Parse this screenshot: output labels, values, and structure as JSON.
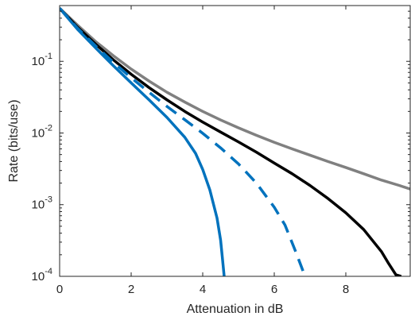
{
  "chart_data": {
    "type": "line",
    "title": "",
    "xlabel": "Attenuation in dB",
    "ylabel": "Rate (bits/use)",
    "xlim": [
      0,
      9.8
    ],
    "ylim": [
      0.0001,
      0.6
    ],
    "yscale": "log",
    "grid": false,
    "legend": "none",
    "x_ticks": [
      0,
      2,
      4,
      6,
      8
    ],
    "x_tick_labels": [
      "0",
      "2",
      "4",
      "6",
      "8"
    ],
    "y_ticks": [
      0.0001,
      0.001,
      0.01,
      0.1
    ],
    "y_tick_labels": [
      {
        "base": "10",
        "exp": "-4"
      },
      {
        "base": "10",
        "exp": "-3"
      },
      {
        "base": "10",
        "exp": "-2"
      },
      {
        "base": "10",
        "exp": "-1"
      }
    ],
    "series": [
      {
        "color": "#808080",
        "style": "solid",
        "x": [
          0,
          0.5,
          1,
          1.5,
          2,
          2.5,
          3,
          3.5,
          4,
          4.5,
          5,
          5.5,
          6,
          6.5,
          7,
          7.5,
          8,
          8.5,
          9,
          9.5,
          9.8
        ],
        "y": [
          0.55,
          0.32,
          0.19,
          0.12,
          0.078,
          0.053,
          0.037,
          0.027,
          0.02,
          0.0152,
          0.0118,
          0.0093,
          0.0074,
          0.006,
          0.0049,
          0.004,
          0.0033,
          0.0027,
          0.0022,
          0.00185,
          0.00165
        ]
      },
      {
        "color": "#000000",
        "style": "solid",
        "x": [
          0,
          0.5,
          1,
          1.5,
          2,
          2.5,
          3,
          3.5,
          4,
          4.5,
          5,
          5.5,
          6,
          6.5,
          7,
          7.5,
          8,
          8.5,
          9,
          9.2,
          9.4,
          9.55
        ],
        "y": [
          0.55,
          0.3,
          0.175,
          0.105,
          0.066,
          0.043,
          0.029,
          0.02,
          0.0142,
          0.0103,
          0.0075,
          0.0054,
          0.0038,
          0.0027,
          0.00185,
          0.00122,
          0.00077,
          0.00045,
          0.00022,
          0.00015,
          0.000105,
          0.0001
        ]
      },
      {
        "color": "#0072BD",
        "style": "dashed",
        "x": [
          0,
          0.5,
          1,
          1.5,
          2,
          2.5,
          3,
          3.5,
          4,
          4.5,
          5,
          5.5,
          6,
          6.3,
          6.6,
          6.8,
          6.85
        ],
        "y": [
          0.55,
          0.29,
          0.165,
          0.097,
          0.059,
          0.037,
          0.0235,
          0.0153,
          0.0099,
          0.0062,
          0.0037,
          0.002,
          0.00092,
          0.00052,
          0.00022,
          0.00012,
          0.0001
        ]
      },
      {
        "color": "#0072BD",
        "style": "solid",
        "x": [
          0,
          0.5,
          1,
          1.5,
          2,
          2.5,
          3,
          3.5,
          3.8,
          4,
          4.2,
          4.4,
          4.5,
          4.55,
          4.6
        ],
        "y": [
          0.55,
          0.28,
          0.155,
          0.087,
          0.05,
          0.029,
          0.0165,
          0.0087,
          0.0052,
          0.0031,
          0.0016,
          0.00065,
          0.00032,
          0.00018,
          0.0001
        ]
      }
    ]
  }
}
